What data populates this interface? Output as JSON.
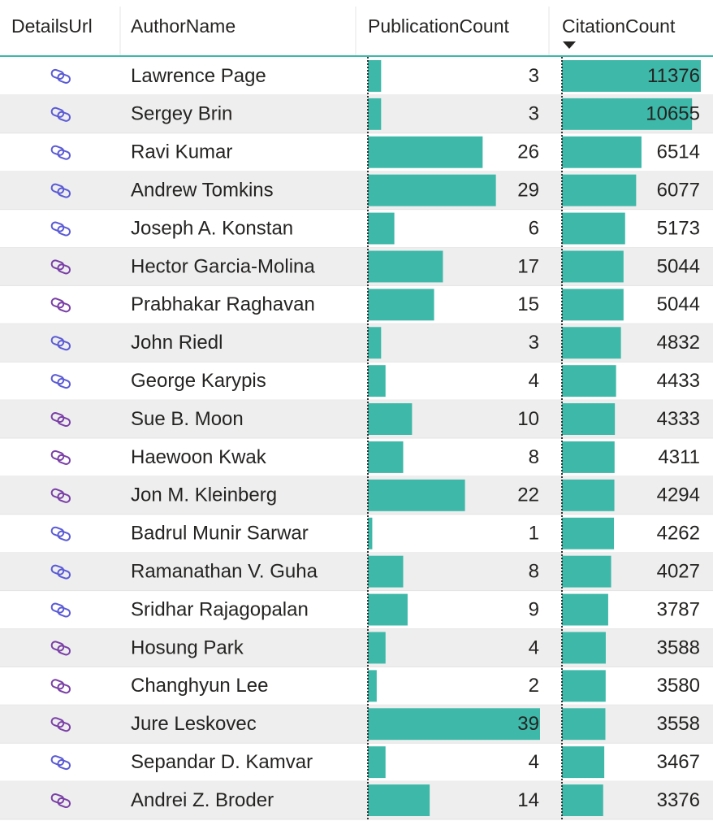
{
  "table": {
    "columns": [
      "DetailsUrl",
      "AuthorName",
      "PublicationCount",
      "CitationCount"
    ],
    "bar_color": "#3db8a9",
    "rows": [
      {
        "icon_color": "#5a5ad6",
        "author": "Lawrence Page",
        "publications": 3,
        "citations": 11376
      },
      {
        "icon_color": "#5a5ad6",
        "author": "Sergey Brin",
        "publications": 3,
        "citations": 10655
      },
      {
        "icon_color": "#5a5ad6",
        "author": "Ravi Kumar",
        "publications": 26,
        "citations": 6514
      },
      {
        "icon_color": "#5a5ad6",
        "author": "Andrew Tomkins",
        "publications": 29,
        "citations": 6077
      },
      {
        "icon_color": "#5a5ad6",
        "author": "Joseph A. Konstan",
        "publications": 6,
        "citations": 5173
      },
      {
        "icon_color": "#7a3fa6",
        "author": "Hector Garcia-Molina",
        "publications": 17,
        "citations": 5044
      },
      {
        "icon_color": "#7a3fa6",
        "author": "Prabhakar Raghavan",
        "publications": 15,
        "citations": 5044
      },
      {
        "icon_color": "#5a5ad6",
        "author": "John Riedl",
        "publications": 3,
        "citations": 4832
      },
      {
        "icon_color": "#5a5ad6",
        "author": "George Karypis",
        "publications": 4,
        "citations": 4433
      },
      {
        "icon_color": "#7a3fa6",
        "author": "Sue B. Moon",
        "publications": 10,
        "citations": 4333
      },
      {
        "icon_color": "#7a3fa6",
        "author": "Haewoon Kwak",
        "publications": 8,
        "citations": 4311
      },
      {
        "icon_color": "#7a3fa6",
        "author": "Jon M. Kleinberg",
        "publications": 22,
        "citations": 4294
      },
      {
        "icon_color": "#5a5ad6",
        "author": "Badrul Munir Sarwar",
        "publications": 1,
        "citations": 4262
      },
      {
        "icon_color": "#5a5ad6",
        "author": "Ramanathan V. Guha",
        "publications": 8,
        "citations": 4027
      },
      {
        "icon_color": "#5a5ad6",
        "author": "Sridhar Rajagopalan",
        "publications": 9,
        "citations": 3787
      },
      {
        "icon_color": "#7a3fa6",
        "author": "Hosung Park",
        "publications": 4,
        "citations": 3588
      },
      {
        "icon_color": "#7a3fa6",
        "author": "Changhyun Lee",
        "publications": 2,
        "citations": 3580
      },
      {
        "icon_color": "#7a3fa6",
        "author": "Jure Leskovec",
        "publications": 39,
        "citations": 3558
      },
      {
        "icon_color": "#5a5ad6",
        "author": "Sepandar D. Kamvar",
        "publications": 4,
        "citations": 3467
      },
      {
        "icon_color": "#7a3fa6",
        "author": "Andrei Z. Broder",
        "publications": 14,
        "citations": 3376
      }
    ]
  }
}
